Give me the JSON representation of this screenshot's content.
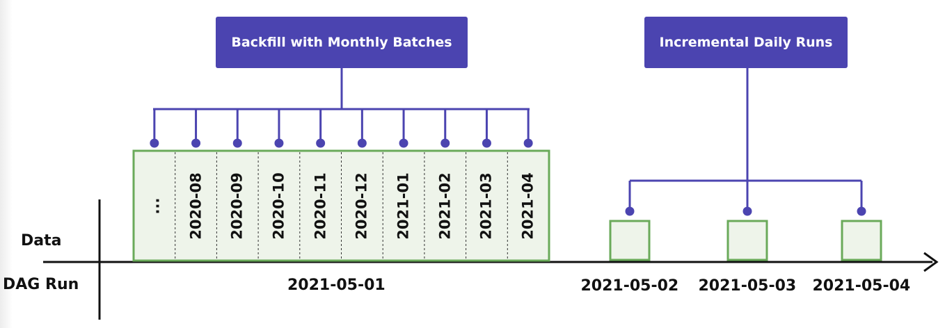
{
  "row_labels": {
    "data": "Data",
    "dag_run": "DAG Run"
  },
  "backfill": {
    "title": "Backfill with Monthly Batches",
    "months": [
      "...",
      "2020-08",
      "2020-09",
      "2020-10",
      "2020-11",
      "2020-12",
      "2021-01",
      "2021-02",
      "2021-03",
      "2021-04"
    ],
    "run_date": "2021-05-01"
  },
  "incremental": {
    "title": "Incremental Daily Runs",
    "run_dates": [
      "2021-05-02",
      "2021-05-03",
      "2021-05-04"
    ]
  },
  "colors": {
    "accent": "#4b44b0",
    "box_border": "#6aaa5a",
    "box_fill": "#eef4ea",
    "axis": "#111111"
  }
}
